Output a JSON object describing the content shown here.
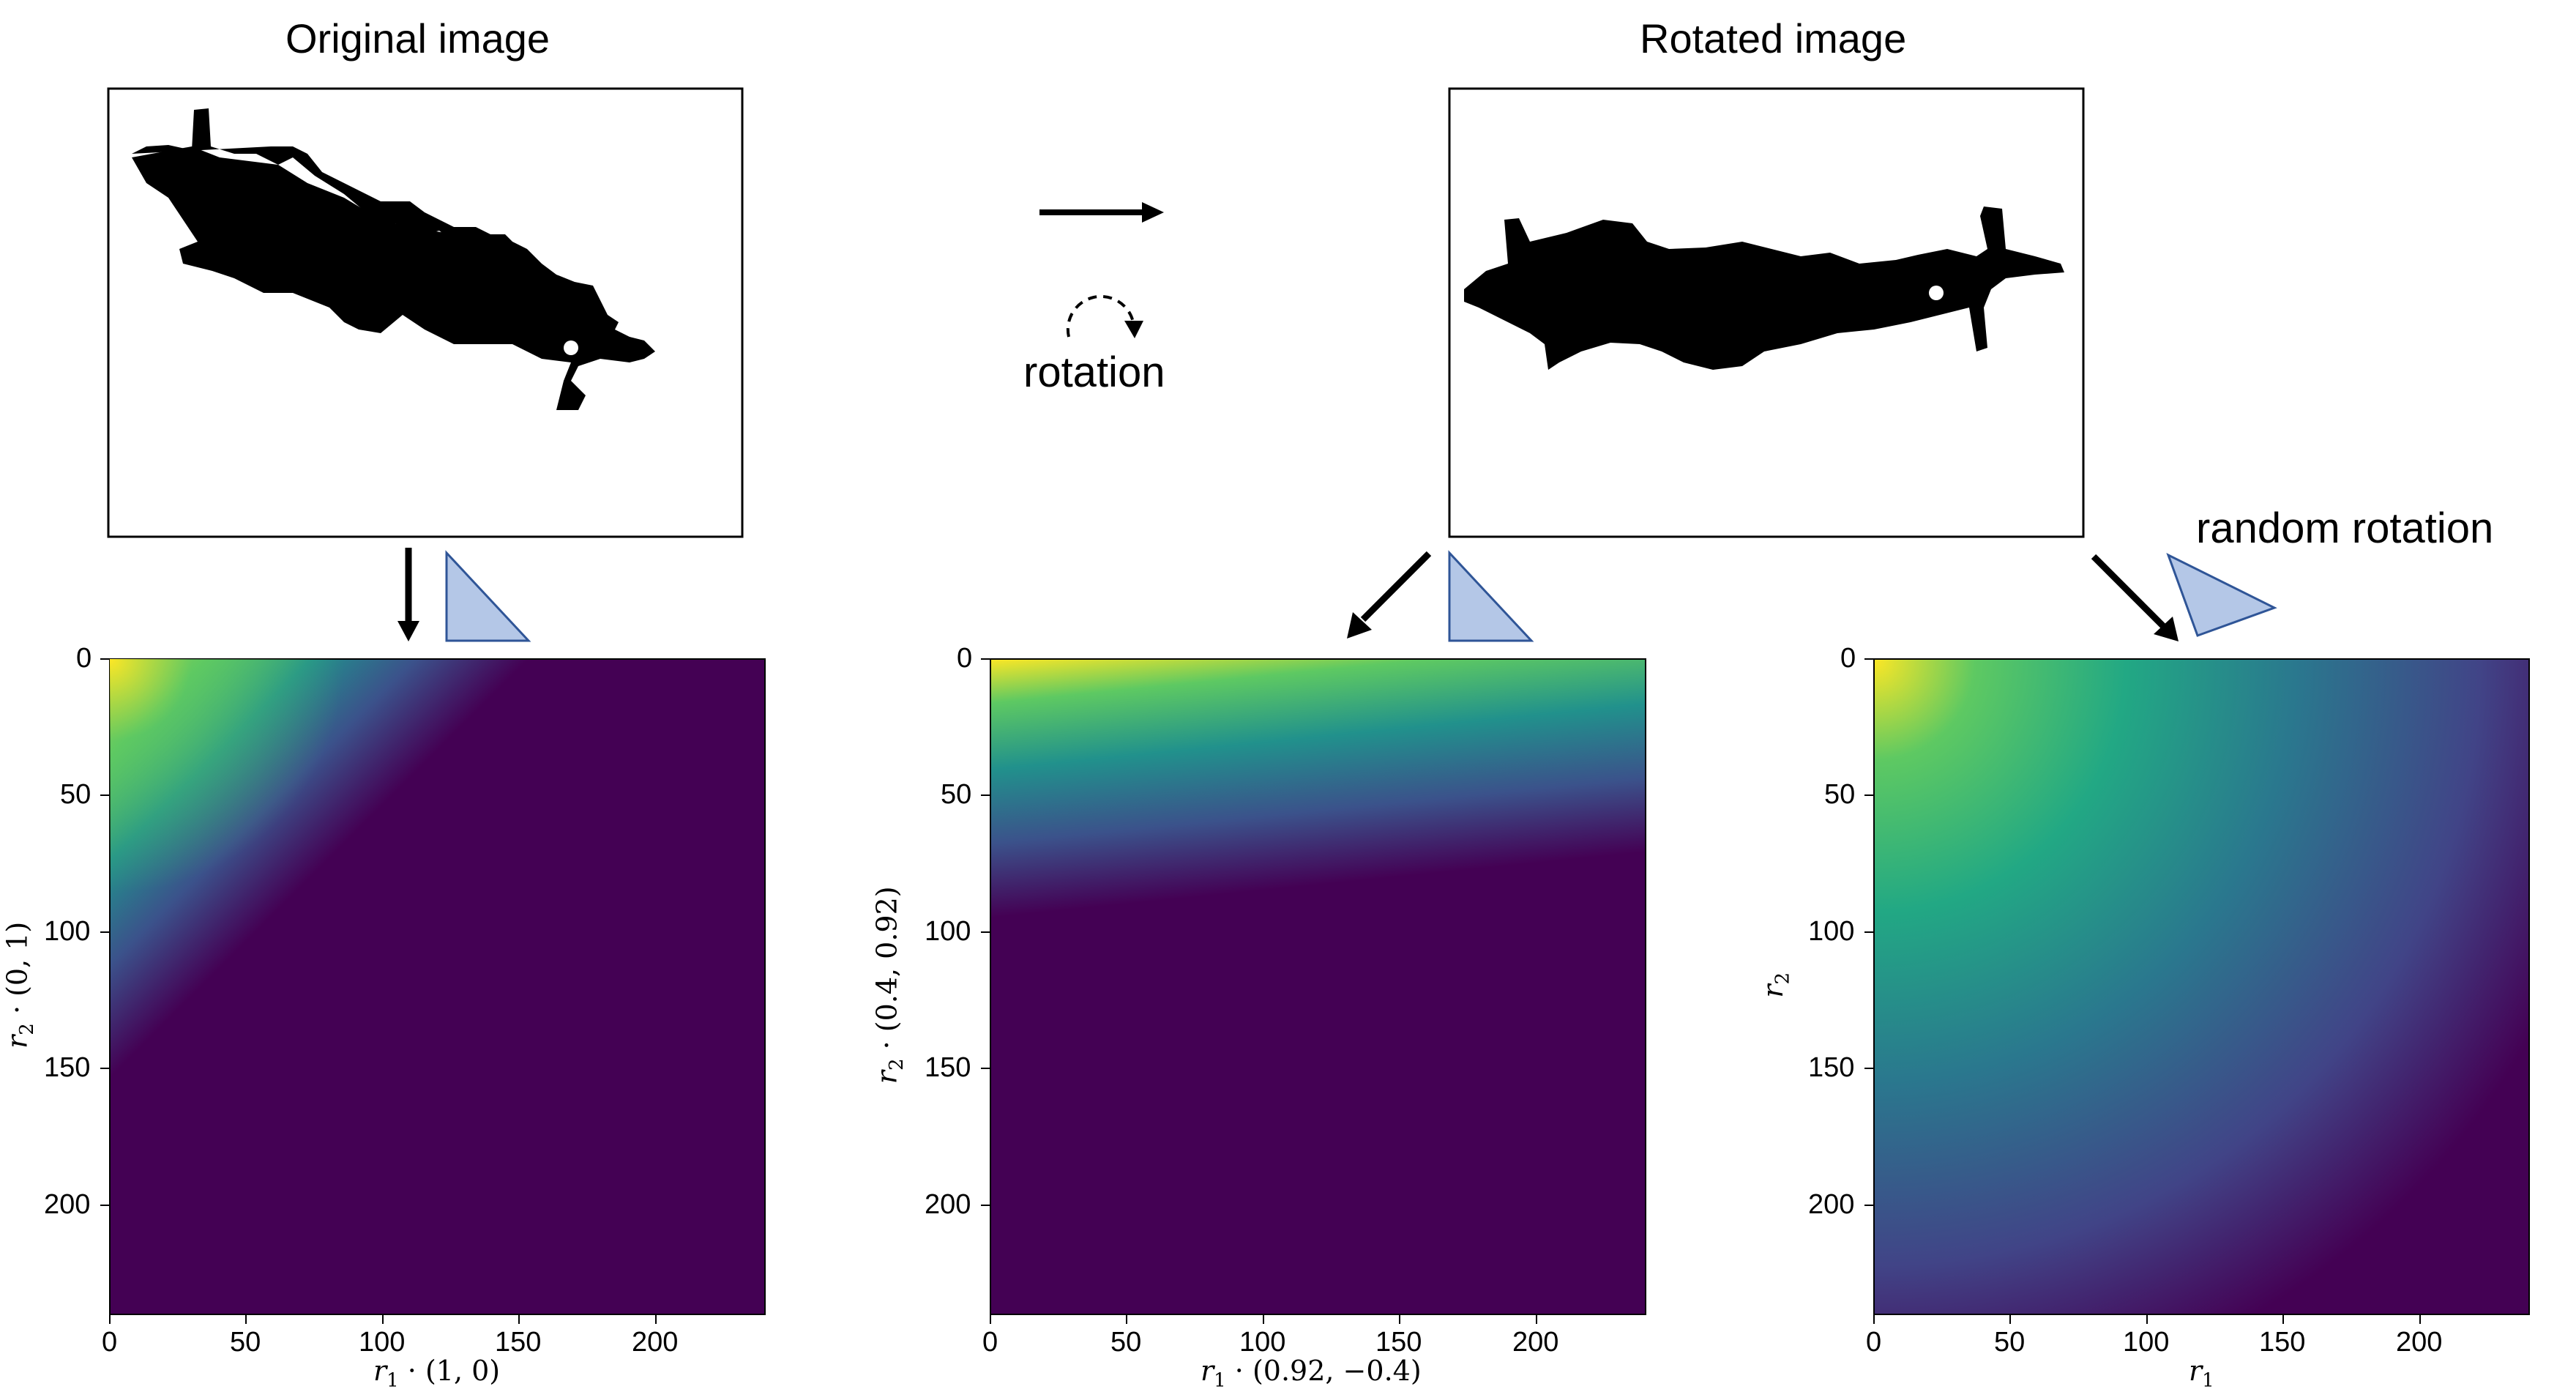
{
  "titles": {
    "original": "Original image",
    "rotated": "Rotated image"
  },
  "annotations": {
    "rotation": "rotation",
    "random_rotation": "random rotation"
  },
  "colormap": "viridis",
  "colors": {
    "triangle_fill": "#b4c7e7",
    "triangle_stroke": "#2f5597",
    "arrow": "#000000",
    "shape": "#000000"
  },
  "ticks": {
    "x": [
      "0",
      "50",
      "100",
      "150",
      "200"
    ],
    "y": [
      "0",
      "50",
      "100",
      "150",
      "200"
    ]
  },
  "panels": [
    {
      "xlabel_var": "r",
      "xlabel_sub": "1",
      "xlabel_rest": " · (1, 0)",
      "ylabel_var": "r",
      "ylabel_sub": "2",
      "ylabel_rest": " · (0, 1)"
    },
    {
      "xlabel_var": "r",
      "xlabel_sub": "1",
      "xlabel_rest": " · (0.92, −0.4)",
      "ylabel_var": "r",
      "ylabel_sub": "2",
      "ylabel_rest": " · (0.4, 0.92)"
    },
    {
      "xlabel_var": "r",
      "xlabel_sub": "1",
      "xlabel_rest": "",
      "ylabel_var": "r",
      "ylabel_sub": "2",
      "ylabel_rest": ""
    }
  ],
  "chart_data": [
    {
      "type": "heatmap",
      "colormap": "viridis",
      "xlim": [
        0,
        240
      ],
      "ylim": [
        240,
        0
      ],
      "xticks": [
        0,
        50,
        100,
        150,
        200
      ],
      "yticks": [
        0,
        50,
        100,
        150,
        200
      ],
      "xlabel": "r1 · (1, 0)",
      "ylabel": "r2 · (0, 1)"
    },
    {
      "type": "heatmap",
      "colormap": "viridis",
      "xlim": [
        0,
        240
      ],
      "ylim": [
        240,
        0
      ],
      "xticks": [
        0,
        50,
        100,
        150,
        200
      ],
      "yticks": [
        0,
        50,
        100,
        150,
        200
      ],
      "xlabel": "r1 · (0.92, −0.4)",
      "ylabel": "r2 · (0.4, 0.92)"
    },
    {
      "type": "heatmap",
      "colormap": "viridis",
      "xlim": [
        0,
        240
      ],
      "ylim": [
        240,
        0
      ],
      "xticks": [
        0,
        50,
        100,
        150,
        200
      ],
      "yticks": [
        0,
        50,
        100,
        150,
        200
      ],
      "xlabel": "r1",
      "ylabel": "r2"
    }
  ]
}
